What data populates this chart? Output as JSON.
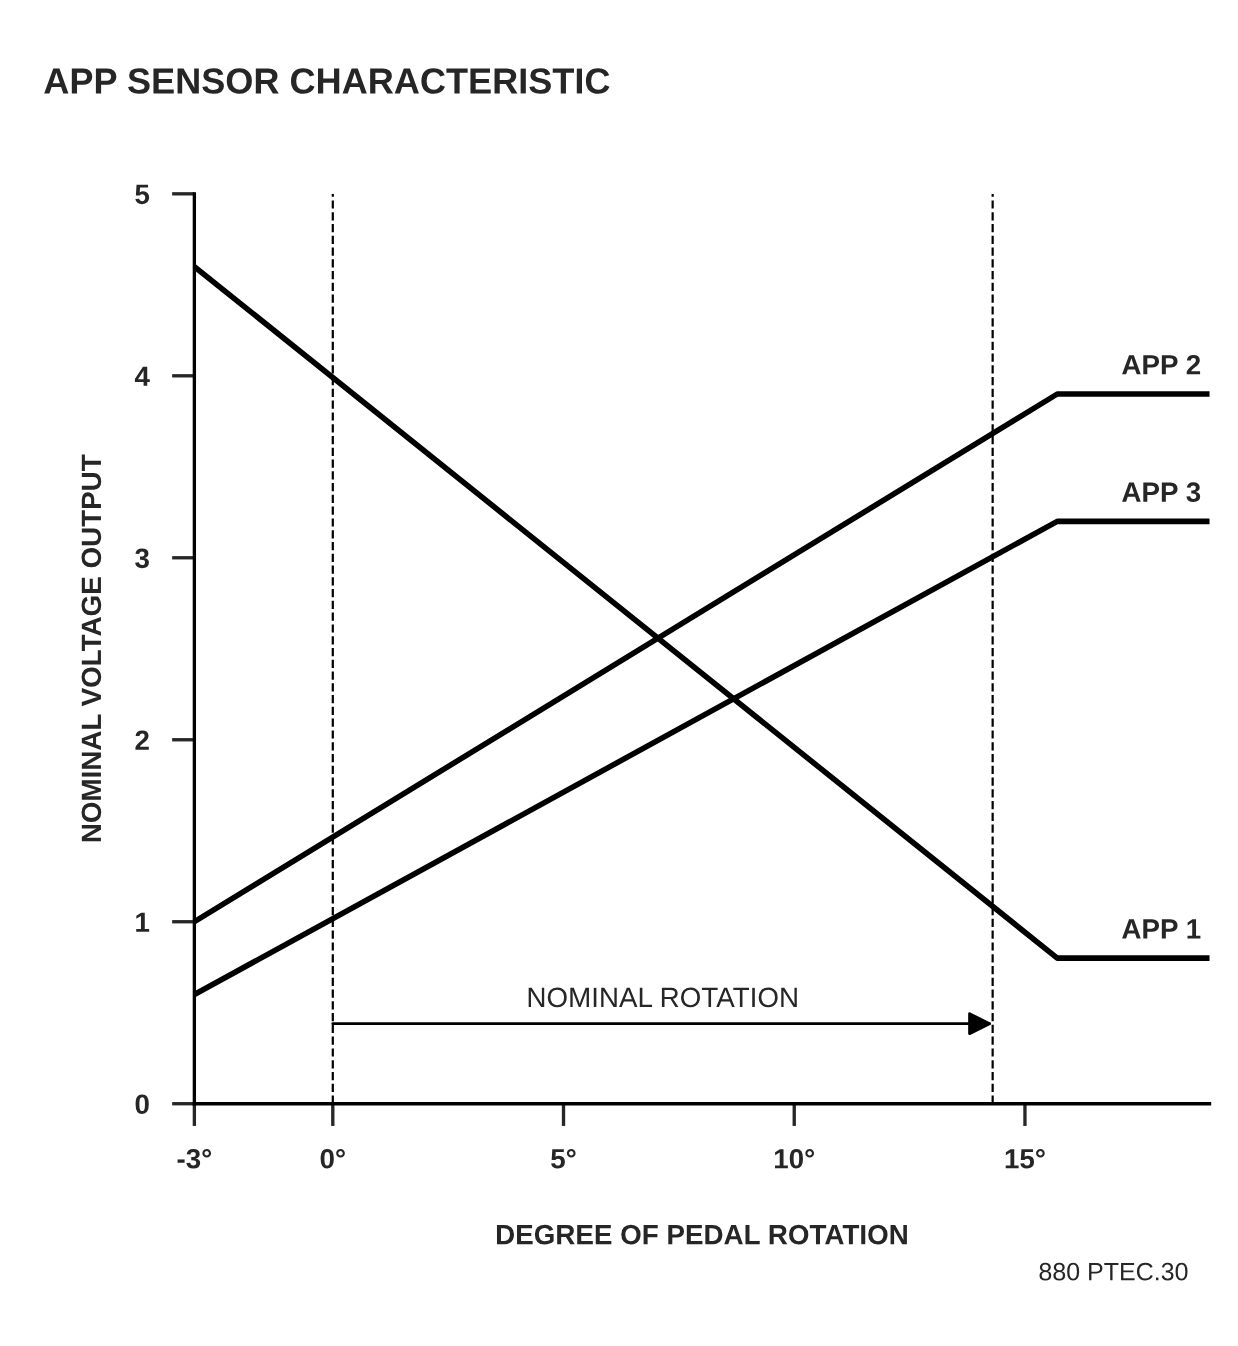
{
  "chart_data": {
    "type": "line",
    "title": "APP SENSOR CHARACTERISTIC",
    "xlabel": "DEGREE OF PEDAL ROTATION",
    "ylabel": "NOMINAL VOLTAGE OUTPUT",
    "series": [
      {
        "name": "APP 2",
        "color": "#000000",
        "x": [
          -3,
          15.7,
          19
        ],
        "values": [
          1.0,
          3.9,
          3.9
        ]
      },
      {
        "name": "APP 3",
        "color": "#000000",
        "x": [
          -3,
          15.7,
          19
        ],
        "values": [
          0.6,
          3.2,
          3.2
        ]
      },
      {
        "name": "APP 1",
        "color": "#000000",
        "x": [
          -3,
          15.7,
          19
        ],
        "values": [
          4.6,
          0.8,
          0.8
        ]
      }
    ],
    "xlim": [
      -3,
      19
    ],
    "ylim": [
      0,
      5
    ],
    "xticks": [
      {
        "value": -3,
        "label": "-3°"
      },
      {
        "value": 0,
        "label": "0°"
      },
      {
        "value": 5,
        "label": "5°"
      },
      {
        "value": 10,
        "label": "10°"
      },
      {
        "value": 15,
        "label": "15°"
      }
    ],
    "yticks": [
      0,
      1,
      2,
      3,
      4,
      5
    ],
    "ref_lines": [
      {
        "axis": "x",
        "value": 0,
        "line_style": "dashed"
      },
      {
        "axis": "x",
        "value": 14.3,
        "line_style": "dashed"
      }
    ],
    "annotations": [
      "NOMINAL ROTATION",
      "880 PTEC.30"
    ],
    "grid": false,
    "legend": false,
    "marker": "none",
    "line_style": "solid"
  }
}
